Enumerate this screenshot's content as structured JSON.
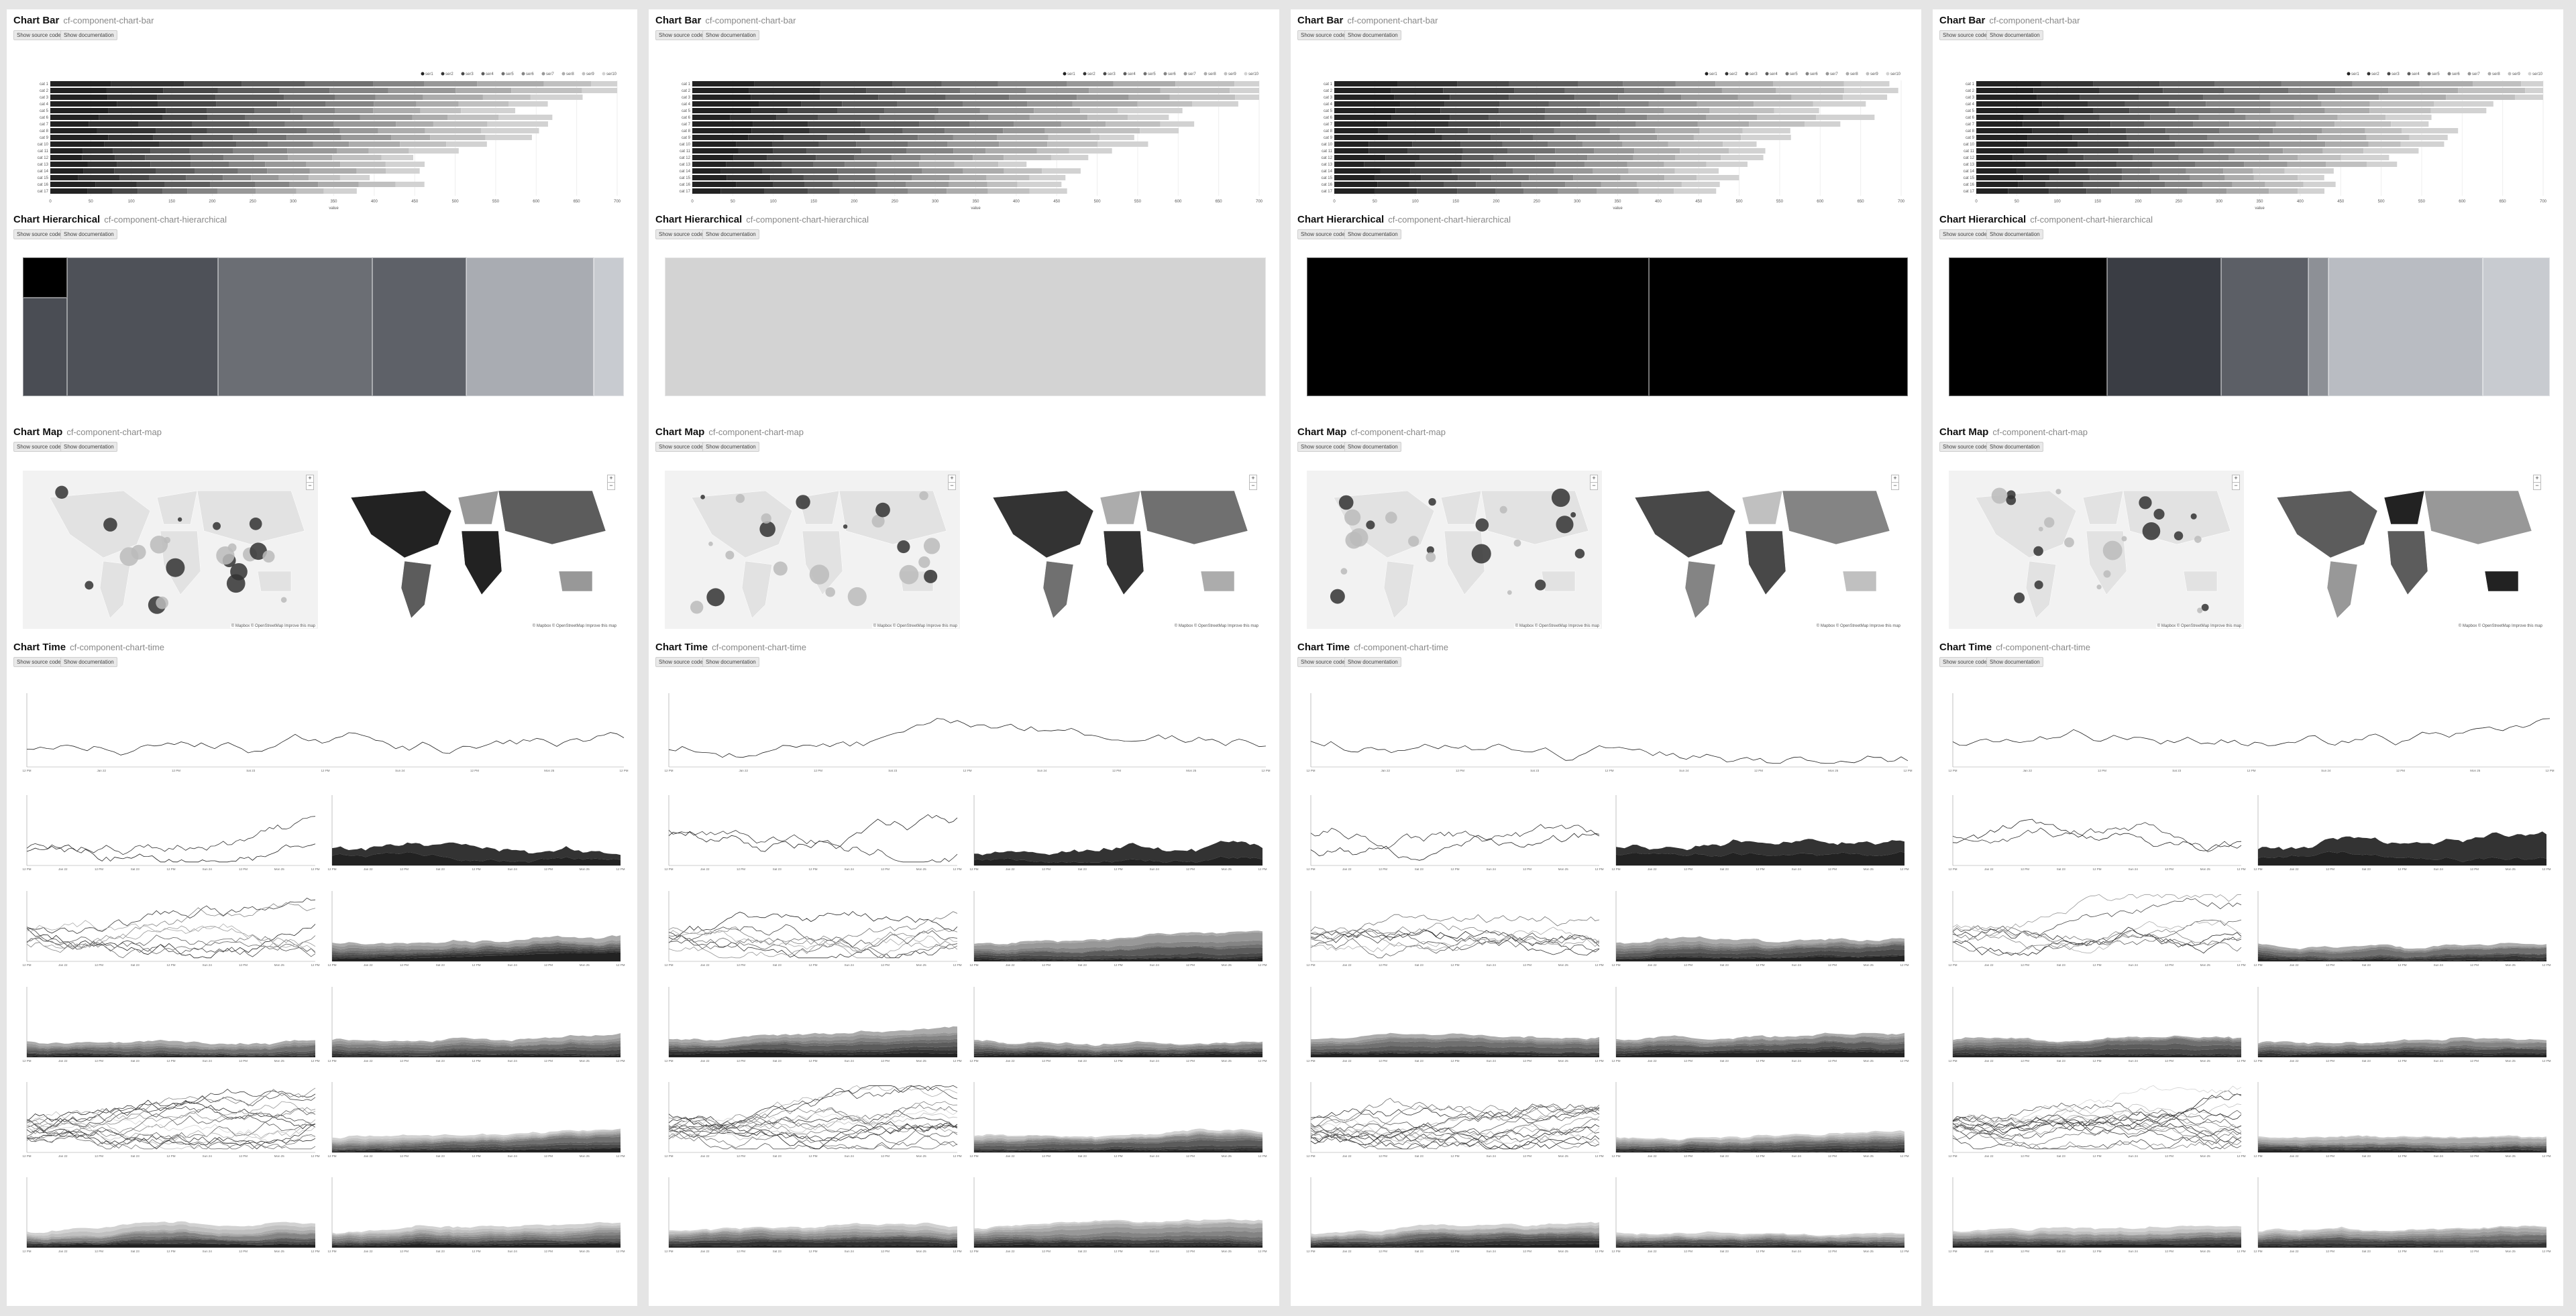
{
  "sections": {
    "bar": {
      "title": "Chart Bar",
      "selector": "cf-component-chart-bar"
    },
    "hierarchical": {
      "title": "Chart Hierarchical",
      "selector": "cf-component-chart-hierarchical"
    },
    "map": {
      "title": "Chart Map",
      "selector": "cf-component-chart-map"
    },
    "time": {
      "title": "Chart Time",
      "selector": "cf-component-chart-time"
    }
  },
  "buttons": {
    "source": "Show source code",
    "docs": "Show documentation"
  },
  "map_attribution": "© Mapbox © OpenStreetMap Improve this map",
  "colors": {
    "page_bg": "#e5e5e5",
    "panel_bg": "#ffffff",
    "dark": "#111111",
    "mid": "#666666",
    "light": "#cccccc"
  },
  "panels": [
    {
      "id": "panel-1"
    },
    {
      "id": "panel-2"
    },
    {
      "id": "panel-3"
    },
    {
      "id": "panel-4"
    }
  ],
  "chart_data": [
    {
      "type": "bar",
      "orientation": "horizontal-stacked",
      "categories": [
        "cat 1",
        "cat 2",
        "cat 3",
        "cat 4",
        "cat 5",
        "cat 6",
        "cat 7",
        "cat 8",
        "cat 9",
        "cat 10",
        "cat 11",
        "cat 12",
        "cat 13",
        "cat 14",
        "cat 15",
        "cat 16",
        "cat 17"
      ],
      "series_count": 10,
      "xlim": [
        0,
        700
      ],
      "x_ticks": [
        0,
        50,
        100,
        150,
        200,
        250,
        300,
        350,
        400,
        450,
        500,
        550,
        600,
        650,
        700
      ],
      "legend": "top-right",
      "grid": true
    },
    {
      "type": "treemap",
      "description": "hierarchical treemap, grayscale"
    },
    {
      "type": "map",
      "views": [
        "bubble map",
        "choropleth map"
      ]
    },
    {
      "type": "line",
      "description": "time series small multiples",
      "rows": 6,
      "x_ticks": [
        "12 PM",
        "Jan 22",
        "12 PM",
        "Sat 23",
        "12 PM",
        "Sun 24",
        "12 PM",
        "Mon 25",
        "12 PM",
        "Tue 26",
        "12 PM",
        "Wed 27",
        "12 PM",
        "Thu 28",
        "12 PM"
      ]
    }
  ]
}
